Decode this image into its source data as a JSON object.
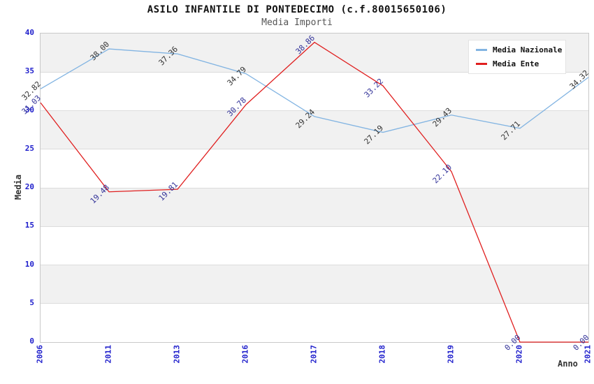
{
  "title": "ASILO INFANTILE DI PONTEDECIMO (c.f.80015650106)",
  "subtitle": "Media Importi",
  "chart_data": {
    "type": "line",
    "categories": [
      "2006",
      "2011",
      "2013",
      "2016",
      "2017",
      "2018",
      "2019",
      "2020",
      "2021"
    ],
    "series": [
      {
        "name": "Media Nazionale",
        "color": "#82b4e2",
        "label_color": "#333333",
        "values": [
          32.82,
          38.0,
          37.36,
          34.79,
          29.24,
          27.19,
          29.43,
          27.71,
          34.32
        ]
      },
      {
        "name": "Media Ente",
        "color": "#e01f1f",
        "label_color": "#333399",
        "values": [
          31.03,
          19.48,
          19.81,
          30.78,
          38.86,
          33.22,
          22.1,
          0.0,
          0.0
        ]
      }
    ],
    "xlabel": "Anno",
    "ylabel": "Media",
    "ylim": [
      0,
      40
    ],
    "ytick_step": 5,
    "yticks": [
      0,
      5,
      10,
      15,
      20,
      25,
      30,
      35,
      40
    ],
    "grid": "horizontal-bands",
    "legend_position": "top-right"
  },
  "colors": {
    "background": "#ffffff",
    "band": "#f1f1f1",
    "gridline": "#dcdcdc",
    "plot_border": "#c9c9c9",
    "tick_label": "#2020cc",
    "title": "#111111",
    "subtitle": "#555555",
    "axis_label": "#333333"
  }
}
